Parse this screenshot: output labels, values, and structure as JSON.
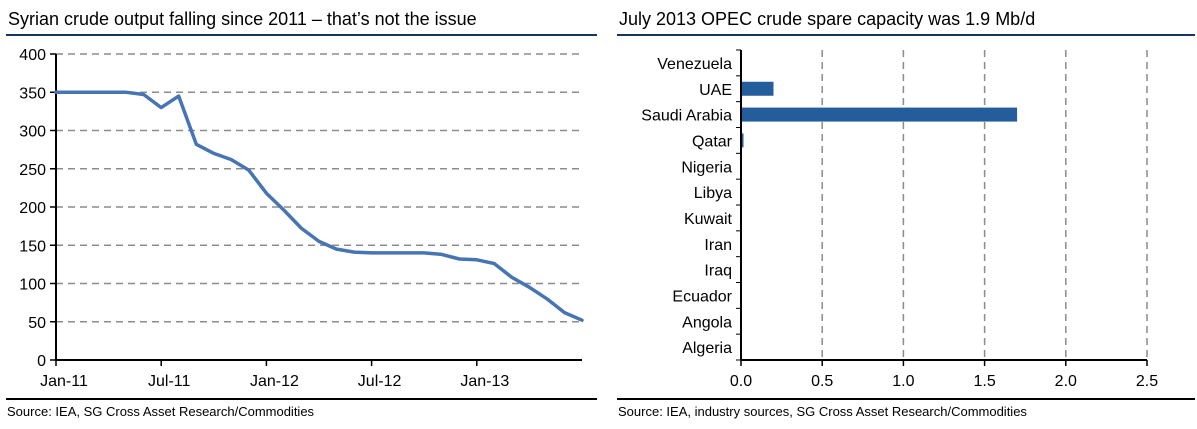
{
  "colors": {
    "line": "#4775B3",
    "bar": "#235D9C",
    "grid": "#8C8C8C",
    "axis": "#000000",
    "title_rule": "#17365D"
  },
  "left_chart": {
    "title": "Syrian crude output falling since 2011 – that’s not the issue",
    "source": "Source: IEA, SG Cross Asset Research/Commodities"
  },
  "right_chart": {
    "title": "July 2013 OPEC crude spare capacity was 1.9 Mb/d",
    "source": "Source: IEA, industry sources, SG Cross Asset Research/Commodities"
  },
  "chart_data": [
    {
      "type": "line",
      "title": "Syrian crude output falling since 2011 – that’s not the issue",
      "xlabel": "",
      "ylabel": "",
      "ylim": [
        0,
        400
      ],
      "ytick_step": 50,
      "grid": "horizontal-dashed",
      "x": [
        "Jan-11",
        "Feb-11",
        "Mar-11",
        "Apr-11",
        "May-11",
        "Jun-11",
        "Jul-11",
        "Aug-11",
        "Sep-11",
        "Oct-11",
        "Nov-11",
        "Dec-11",
        "Jan-12",
        "Feb-12",
        "Mar-12",
        "Apr-12",
        "May-12",
        "Jun-12",
        "Jul-12",
        "Aug-12",
        "Sep-12",
        "Oct-12",
        "Nov-12",
        "Dec-12",
        "Jan-13",
        "Feb-13",
        "Mar-13",
        "Apr-13",
        "May-13",
        "Jun-13",
        "Jul-13"
      ],
      "x_labeled_ticks": [
        "Jan-11",
        "Jul-11",
        "Jan-12",
        "Jul-12",
        "Jan-13"
      ],
      "values": [
        350,
        350,
        350,
        350,
        350,
        347,
        330,
        345,
        282,
        270,
        262,
        248,
        218,
        196,
        172,
        155,
        145,
        141,
        140,
        140,
        140,
        140,
        138,
        132,
        131,
        126,
        108,
        95,
        80,
        62,
        52
      ]
    },
    {
      "type": "bar",
      "orientation": "horizontal",
      "title": "July 2013 OPEC crude spare capacity was 1.9 Mb/d",
      "xlim": [
        0,
        2.5
      ],
      "xticks": [
        0,
        0.5,
        1,
        1.5,
        2,
        2.5
      ],
      "grid": "vertical-dashed",
      "categories": [
        "Venezuela",
        "UAE",
        "Saudi Arabia",
        "Qatar",
        "Nigeria",
        "Libya",
        "Kuwait",
        "Iran",
        "Iraq",
        "Ecuador",
        "Angola",
        "Algeria"
      ],
      "values": [
        0,
        0.2,
        1.7,
        0.015,
        0,
        0,
        0,
        0,
        0,
        0,
        0,
        0
      ]
    }
  ]
}
